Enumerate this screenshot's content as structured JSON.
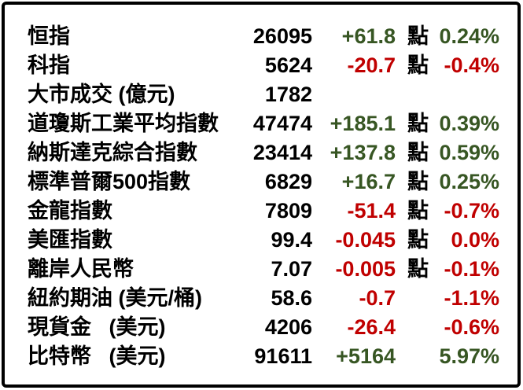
{
  "table": {
    "colors": {
      "up": "#375623",
      "down": "#C00000",
      "text": "#000000",
      "border": "#000000",
      "background": "#FFFFFF"
    },
    "unit_label": "點",
    "rows": [
      {
        "label": "恒指",
        "value": "26095",
        "change": "+61.8",
        "unit": "點",
        "pct": "0.24%",
        "direction": "up"
      },
      {
        "label": "科指",
        "value": "5624",
        "change": "-20.7",
        "unit": "點",
        "pct": "-0.4%",
        "direction": "down"
      },
      {
        "label": "大市成交 (億元)",
        "value": "1782",
        "change": "",
        "unit": "",
        "pct": "",
        "direction": "none"
      },
      {
        "label": "道瓊斯工業平均指數",
        "value": "47474",
        "change": "+185.1",
        "unit": "點",
        "pct": "0.39%",
        "direction": "up"
      },
      {
        "label": "納斯達克綜合指數",
        "value": "23414",
        "change": "+137.8",
        "unit": "點",
        "pct": "0.59%",
        "direction": "up"
      },
      {
        "label": "標準普爾500指數",
        "value": "6829",
        "change": "+16.7",
        "unit": "點",
        "pct": "0.25%",
        "direction": "up"
      },
      {
        "label": "金龍指數",
        "value": "7809",
        "change": "-51.4",
        "unit": "點",
        "pct": "-0.7%",
        "direction": "down"
      },
      {
        "label": "美匯指數",
        "value": "99.4",
        "change": "-0.045",
        "unit": "點",
        "pct": "0.0%",
        "direction": "down"
      },
      {
        "label": "離岸人民幣",
        "value": "7.07",
        "change": "-0.005",
        "unit": "點",
        "pct": "-0.1%",
        "direction": "down"
      },
      {
        "label": "紐約期油 (美元/桶)",
        "value": "58.6",
        "change": "-0.7",
        "unit": "",
        "pct": "-1.1%",
        "direction": "down"
      },
      {
        "label": "現貨金   (美元)",
        "value": "4206",
        "change": "-26.4",
        "unit": "",
        "pct": "-0.6%",
        "direction": "down"
      },
      {
        "label": "比特幣   (美元)",
        "value": "91611",
        "change": "+5164",
        "unit": "",
        "pct": "5.97%",
        "direction": "up"
      }
    ]
  }
}
